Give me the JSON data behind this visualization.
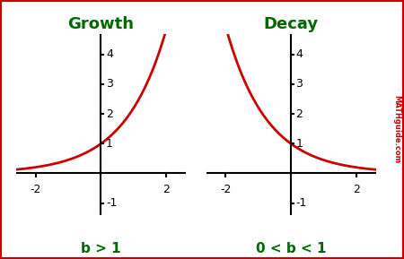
{
  "title_growth": "Growth",
  "title_decay": "Decay",
  "label_growth": "b > 1",
  "label_decay": "0 < b < 1",
  "xlim": [
    -2.6,
    2.6
  ],
  "ylim": [
    -1.4,
    4.7
  ],
  "curve_color": "#cc0000",
  "title_color": "#006600",
  "label_color": "#006600",
  "watermark_color": "#cc0000",
  "watermark_text": "MATHguide.com",
  "bg_color": "#ffffff",
  "border_color": "#cc0000",
  "growth_base": 2.2,
  "decay_base": 0.45,
  "tick_fontsize": 9,
  "title_fontsize": 13,
  "label_fontsize": 11
}
